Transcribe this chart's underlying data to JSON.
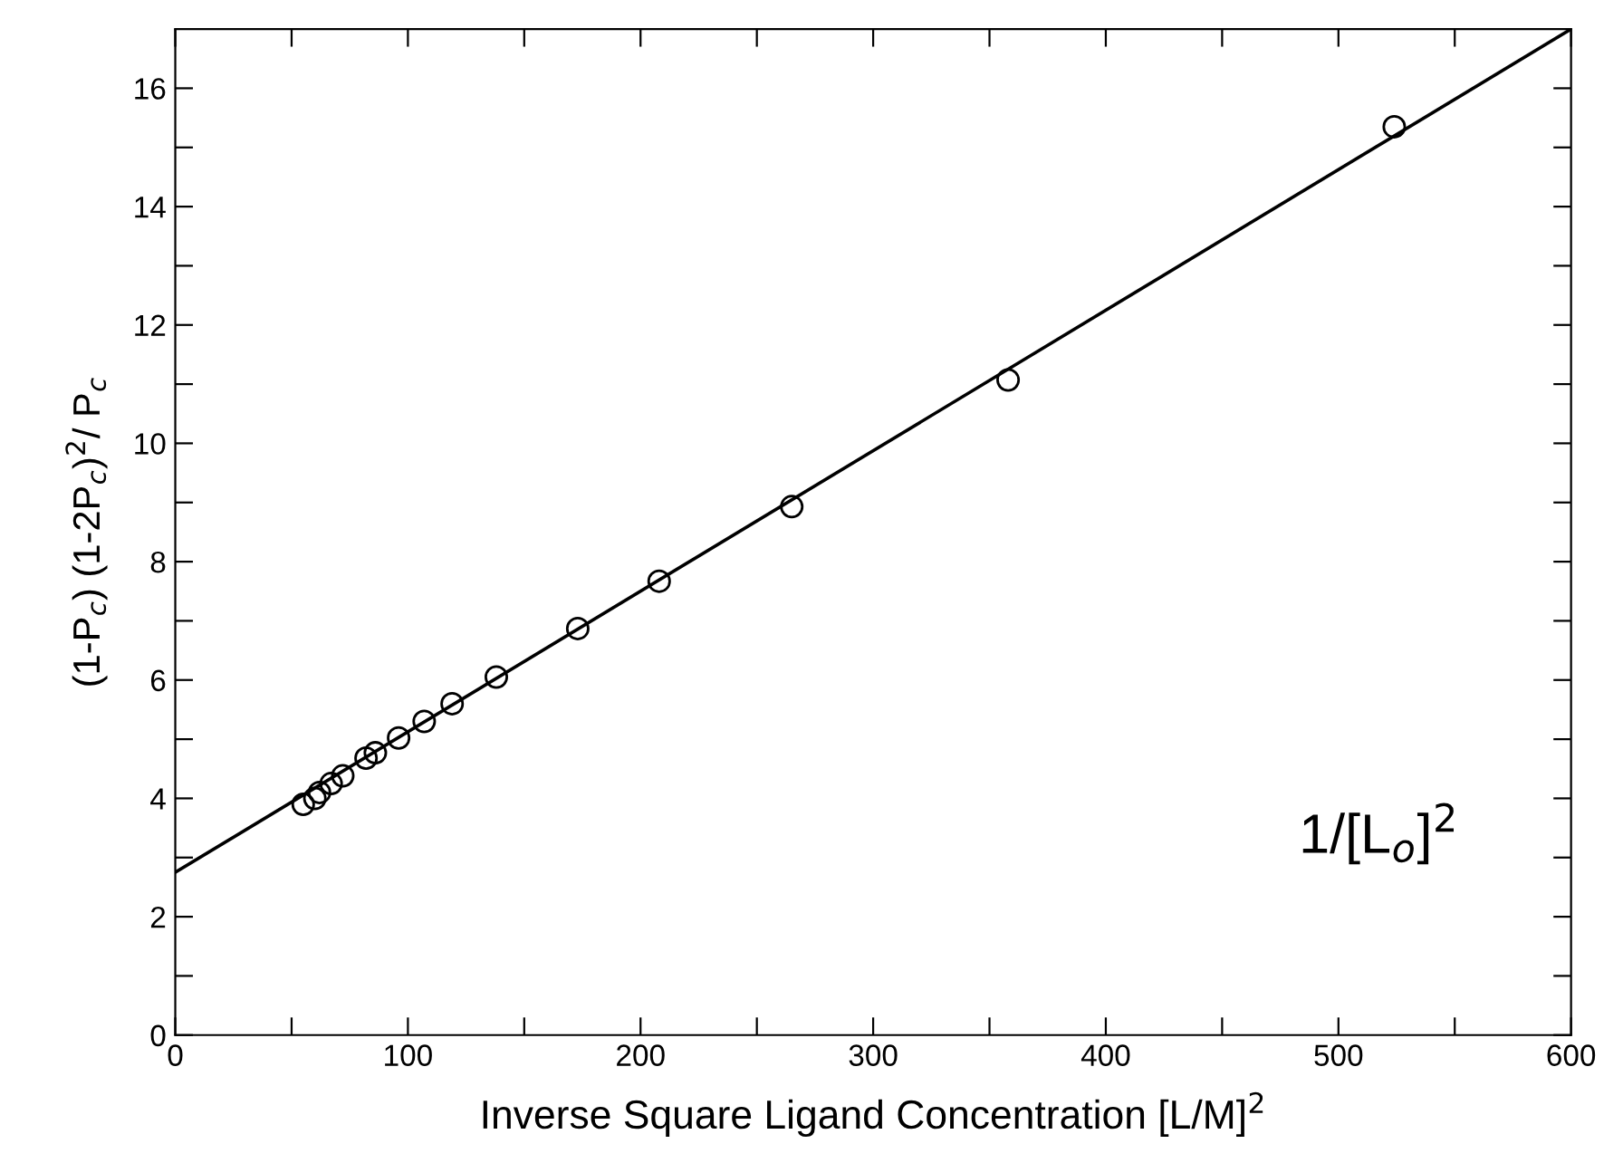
{
  "chart_data": {
    "type": "scatter",
    "xlabel": "Inverse Square Ligand Concentration [L/M]$^{2}$",
    "ylabel": "(1-P$_{c}$) (1-2P$_{c}$)$^{2}$/ P$_{c}$",
    "annotations": [
      "1/[L$_{o}$]$^{2}$"
    ],
    "xlim": [
      0,
      600
    ],
    "ylim": [
      0,
      17
    ],
    "xticks": [
      0,
      {
        "value": 50,
        "label": null
      },
      100,
      {
        "value": 150,
        "label": null
      },
      200,
      {
        "value": 250,
        "label": null
      },
      300,
      {
        "value": 350,
        "label": null
      },
      400,
      {
        "value": 450,
        "label": null
      },
      500,
      {
        "value": 550,
        "label": null
      },
      600
    ],
    "yticks": [
      0,
      {
        "value": 1,
        "label": null
      },
      2,
      {
        "value": 3,
        "label": null
      },
      4,
      {
        "value": 5,
        "label": null
      },
      6,
      {
        "value": 7,
        "label": null
      },
      8,
      {
        "value": 9,
        "label": null
      },
      10,
      {
        "value": 11,
        "label": null
      },
      12,
      {
        "value": 13,
        "label": null
      },
      14,
      {
        "value": 15,
        "label": null
      },
      16
    ],
    "grid": false,
    "legend": false,
    "series": [
      {
        "marker": "circle",
        "color": "#000000",
        "x": [
          55,
          60,
          62,
          67,
          72,
          82,
          86,
          96,
          107,
          119,
          138,
          173,
          208,
          265,
          358,
          524
        ],
        "values": [
          3.9,
          4.0,
          4.1,
          4.25,
          4.38,
          4.68,
          4.77,
          5.02,
          5.3,
          5.6,
          6.05,
          6.87,
          7.67,
          8.93,
          11.07,
          15.35
        ]
      },
      {
        "type": "line",
        "color": "#000000",
        "x": [
          0,
          600
        ],
        "values": [
          2.75,
          17
        ]
      }
    ]
  }
}
